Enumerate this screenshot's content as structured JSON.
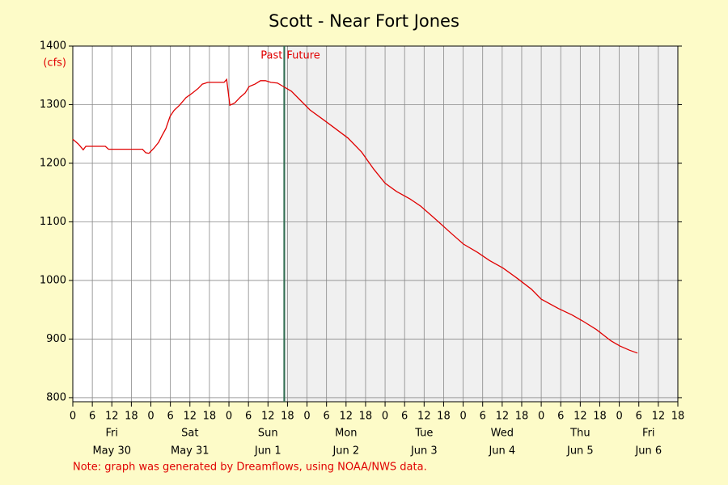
{
  "chart_data": {
    "type": "line",
    "title": "Scott - Near Fort Jones",
    "y_label": "(cfs)",
    "annotation_past": "Past",
    "annotation_future": "Future",
    "now_x": 65,
    "note": "Note: graph was generated by Dreamflows, using NOAA/NWS data.",
    "xlim": [
      0,
      186
    ],
    "ylim": [
      793,
      1400
    ],
    "yticks": [
      800,
      900,
      1000,
      1100,
      1200,
      1300,
      1400
    ],
    "xticks": [
      0,
      6,
      12,
      18,
      {
        "value": 24,
        "label": "0"
      },
      {
        "value": 30,
        "label": "6"
      },
      {
        "value": 36,
        "label": "12"
      },
      {
        "value": 42,
        "label": "18"
      },
      {
        "value": 48,
        "label": "0"
      },
      {
        "value": 54,
        "label": "6"
      },
      {
        "value": 60,
        "label": "12"
      },
      {
        "value": 66,
        "label": "18"
      },
      {
        "value": 72,
        "label": "0"
      },
      {
        "value": 78,
        "label": "6"
      },
      {
        "value": 84,
        "label": "12"
      },
      {
        "value": 90,
        "label": "18"
      },
      {
        "value": 96,
        "label": "0"
      },
      {
        "value": 102,
        "label": "6"
      },
      {
        "value": 108,
        "label": "12"
      },
      {
        "value": 114,
        "label": "18"
      },
      {
        "value": 120,
        "label": "0"
      },
      {
        "value": 126,
        "label": "6"
      },
      {
        "value": 132,
        "label": "12"
      },
      {
        "value": 138,
        "label": "18"
      },
      {
        "value": 144,
        "label": "0"
      },
      {
        "value": 150,
        "label": "6"
      },
      {
        "value": 156,
        "label": "12"
      },
      {
        "value": 162,
        "label": "18"
      },
      {
        "value": 168,
        "label": "0"
      },
      {
        "value": 174,
        "label": "6"
      },
      {
        "value": 180,
        "label": "12"
      },
      {
        "value": 186,
        "label": "18"
      }
    ],
    "day_labels": [
      {
        "value": 12,
        "weekday": "Fri",
        "date": "May 30"
      },
      {
        "value": 36,
        "weekday": "Sat",
        "date": "May 31"
      },
      {
        "value": 60,
        "weekday": "Sun",
        "date": "Jun 1"
      },
      {
        "value": 84,
        "weekday": "Mon",
        "date": "Jun 2"
      },
      {
        "value": 108,
        "weekday": "Tue",
        "date": "Jun 3"
      },
      {
        "value": 132,
        "weekday": "Wed",
        "date": "Jun 4"
      },
      {
        "value": 156,
        "weekday": "Thu",
        "date": "Jun 5"
      },
      {
        "value": 177,
        "weekday": "Fri",
        "date": "Jun 6"
      }
    ],
    "grid": true,
    "series": [
      {
        "color": "#e00000",
        "x": [
          0,
          1.7,
          3.2,
          4,
          10,
          11,
          21.4,
          22.4,
          23.4,
          25,
          26.4,
          27.4,
          28.6,
          29.9,
          31.1,
          32.8,
          34.8,
          36.8,
          38.6,
          39.8,
          41.5,
          42.8,
          46.5,
          47.3,
          48.3,
          49.8,
          51.5,
          53,
          54.2,
          56,
          57.7,
          59.2,
          60.9,
          62.9,
          64.7,
          67.2,
          69.7,
          72.9,
          77.1,
          80.3,
          84.6,
          88.8,
          92.5,
          96,
          99.5,
          103.7,
          106.9,
          111.4,
          116.2,
          120.1,
          124.4,
          128.1,
          132.3,
          136.8,
          141,
          144,
          149.3,
          153.5,
          156.7,
          161,
          165.4,
          168.2,
          171.1,
          173.6
        ],
        "values": [
          1241,
          1233,
          1223,
          1229,
          1229,
          1224,
          1224,
          1218,
          1217,
          1226,
          1236,
          1247,
          1259,
          1280,
          1290,
          1299,
          1312,
          1320,
          1328,
          1335,
          1338,
          1338,
          1338,
          1343,
          1299,
          1303,
          1313,
          1320,
          1331,
          1335,
          1341,
          1341,
          1338,
          1337,
          1331,
          1323,
          1309,
          1291,
          1274,
          1261,
          1243,
          1219,
          1190,
          1166,
          1152,
          1139,
          1127,
          1105,
          1081,
          1062,
          1048,
          1034,
          1021,
          1003,
          985,
          968,
          952,
          941,
          931,
          916,
          897,
          888,
          881,
          876
        ]
      }
    ]
  }
}
